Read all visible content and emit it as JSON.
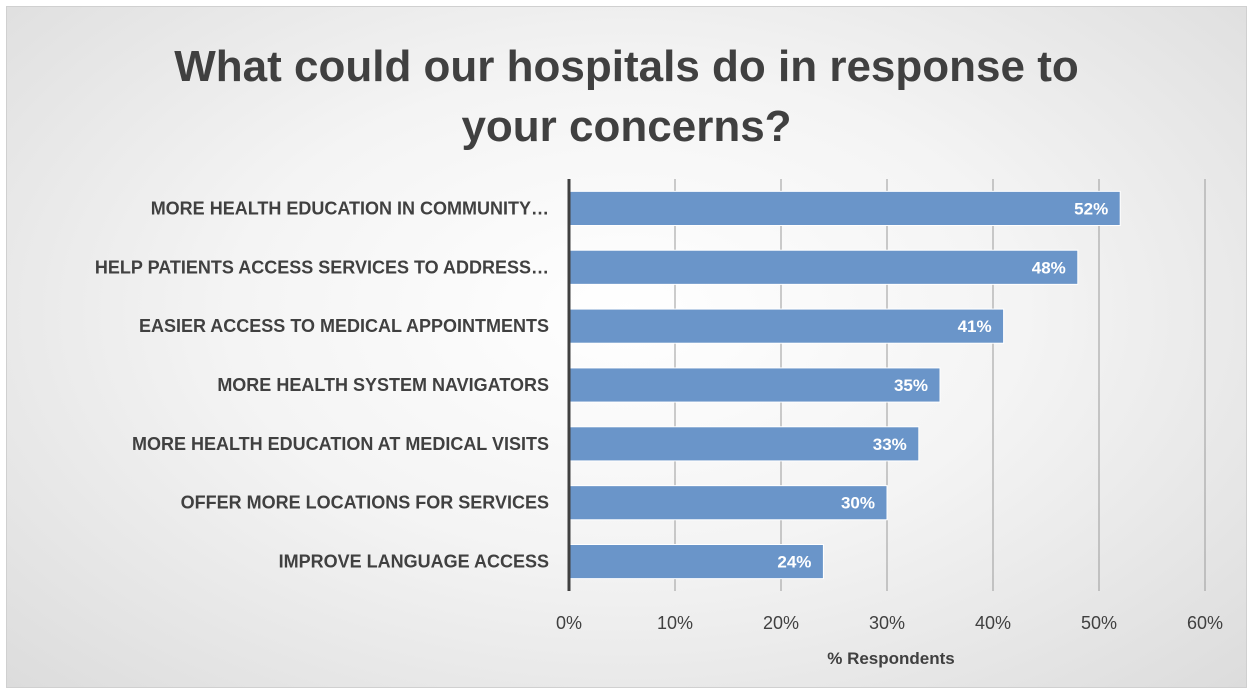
{
  "chart_data": {
    "type": "bar",
    "orientation": "horizontal",
    "title": "What could our hospitals do in response to your concerns?",
    "xlabel": "% Respondents",
    "ylabel": "",
    "xlim": [
      0,
      60
    ],
    "x_ticks": [
      "0%",
      "10%",
      "20%",
      "30%",
      "40%",
      "50%",
      "60%"
    ],
    "grid": true,
    "categories": [
      "MORE HEALTH EDUCATION IN COMMUNITY…",
      "HELP PATIENTS ACCESS SERVICES TO ADDRESS…",
      "EASIER ACCESS TO MEDICAL APPOINTMENTS",
      "MORE HEALTH SYSTEM NAVIGATORS",
      "MORE HEALTH EDUCATION AT MEDICAL VISITS",
      "OFFER MORE LOCATIONS FOR SERVICES",
      "IMPROVE LANGUAGE ACCESS"
    ],
    "values": [
      52,
      48,
      41,
      35,
      33,
      30,
      24
    ],
    "data_labels": [
      "52%",
      "48%",
      "41%",
      "35%",
      "33%",
      "30%",
      "24%"
    ],
    "colors": {
      "bar": "#6a95c9",
      "bar_edge": "#ffffff",
      "grid": "#9a9a9a",
      "axis": "#404040"
    }
  }
}
